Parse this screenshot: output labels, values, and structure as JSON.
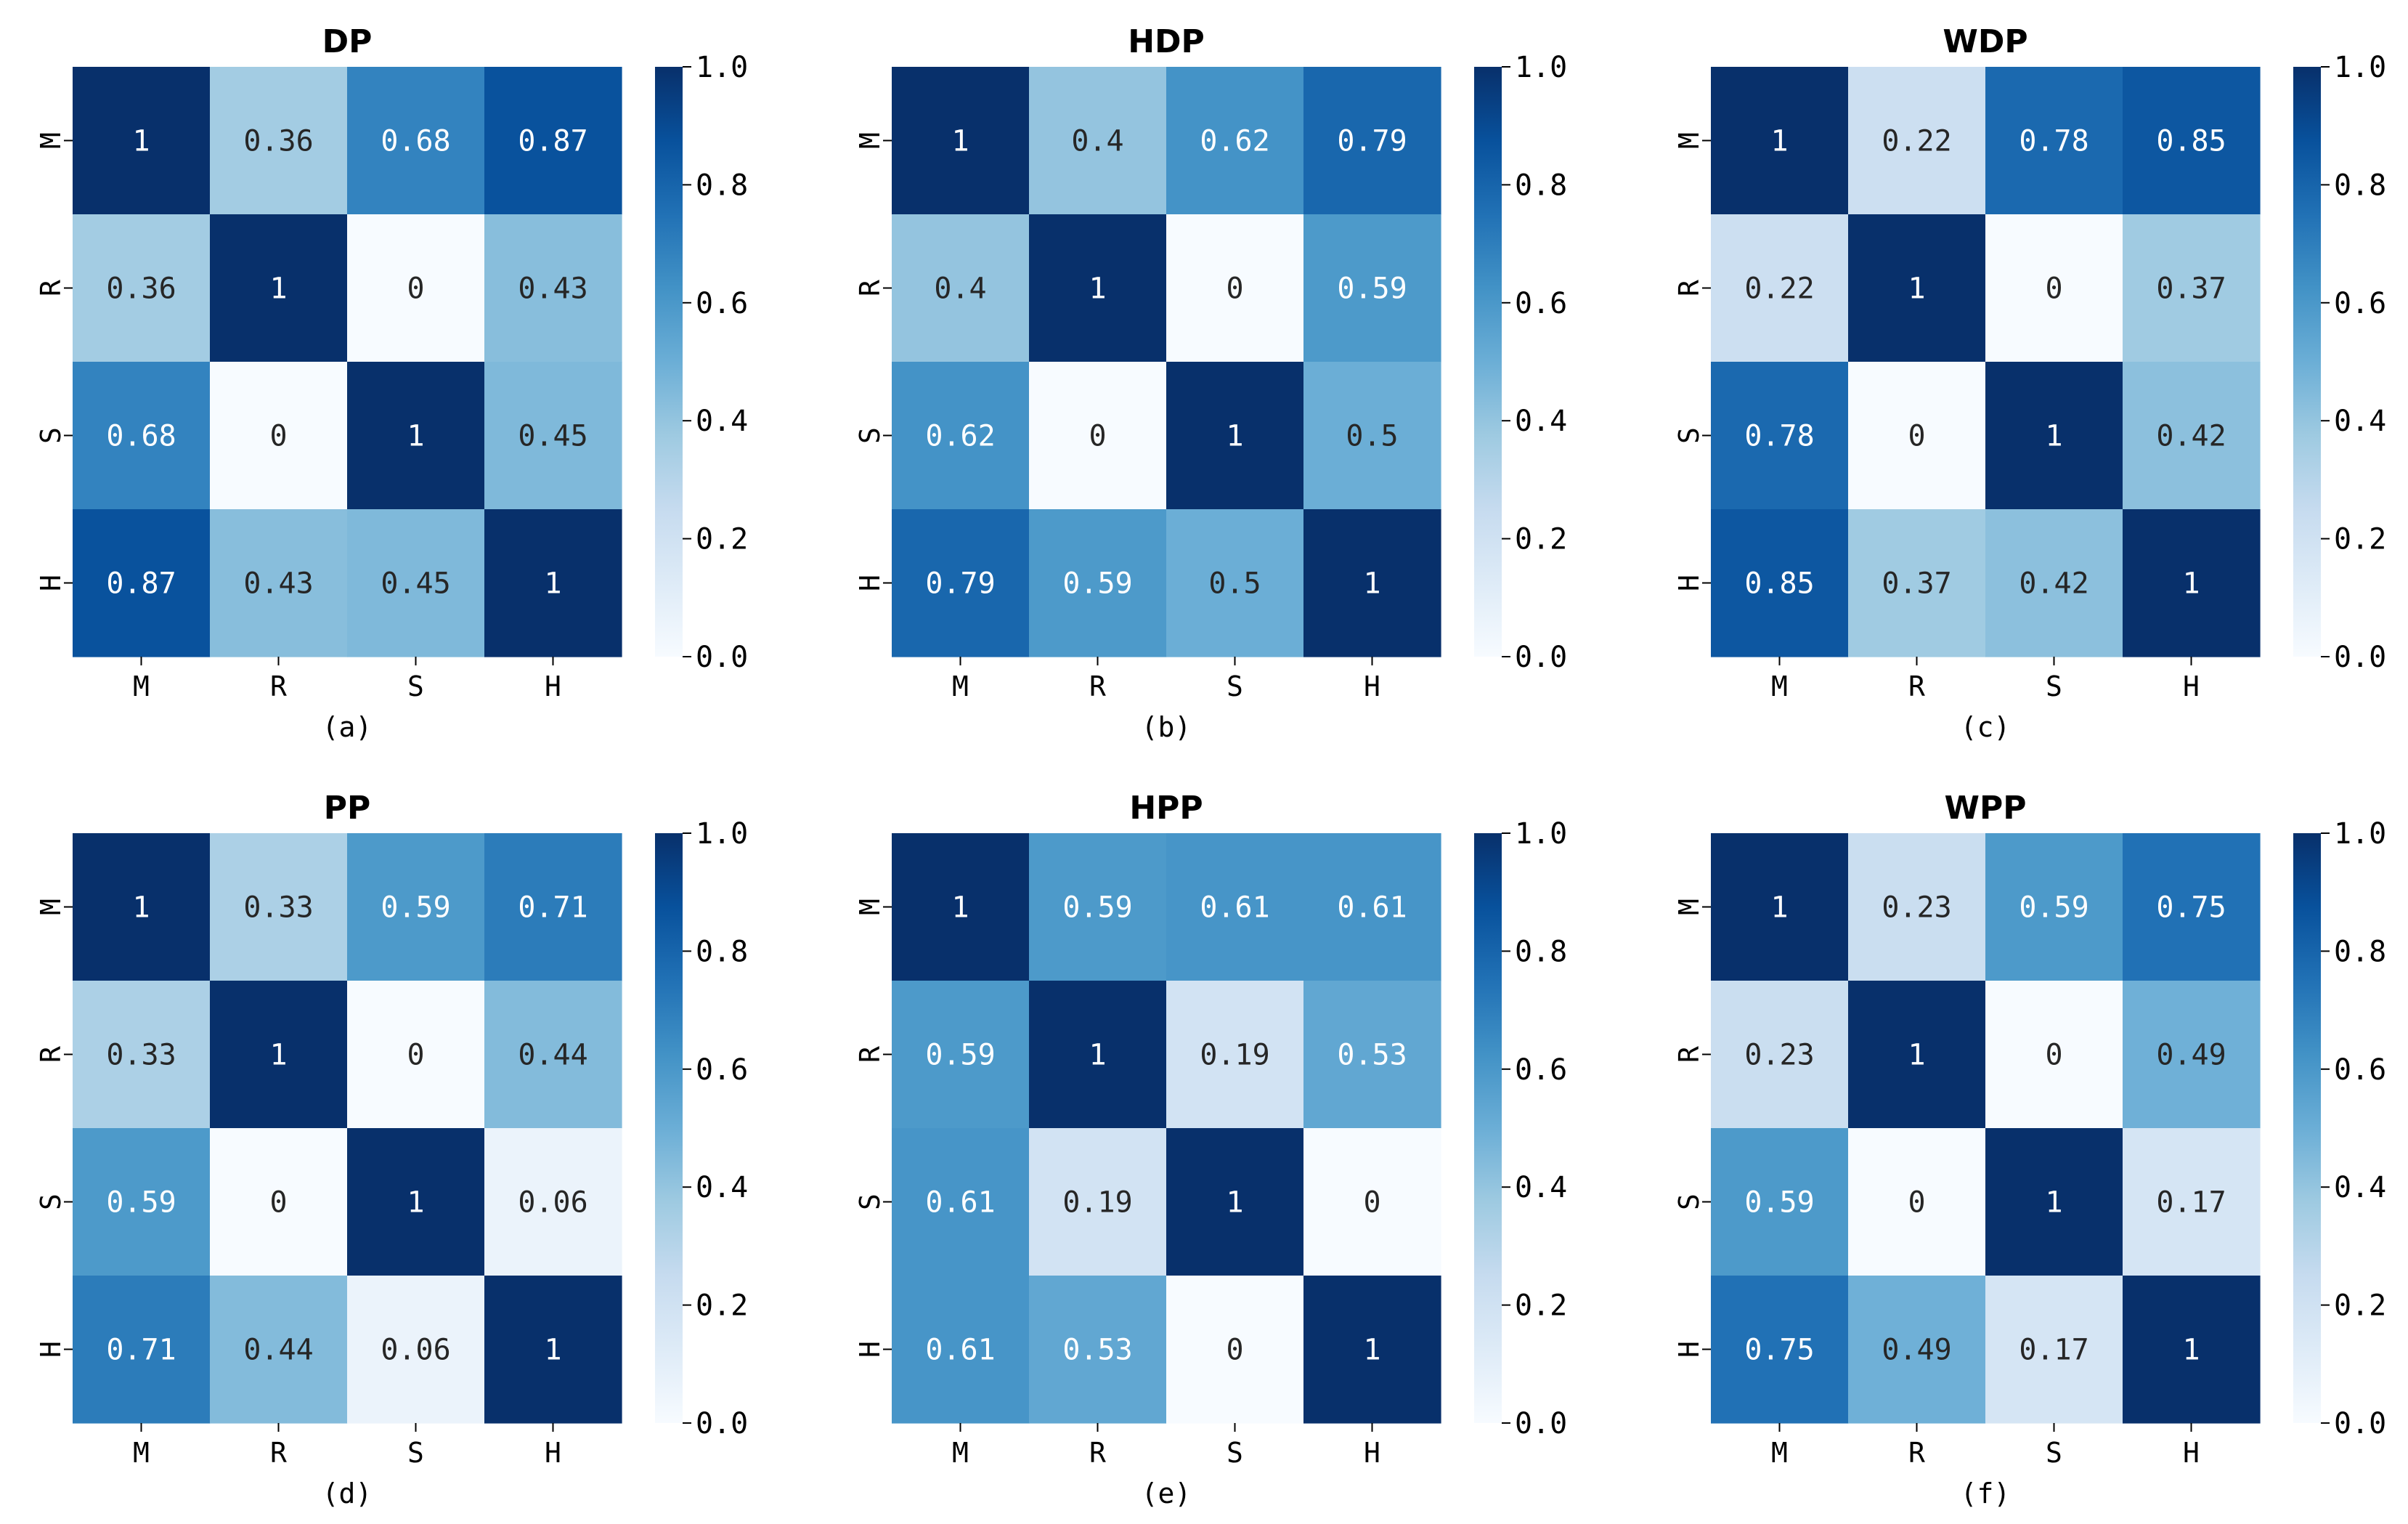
{
  "colors": {
    "scale": [
      "#f7fbff",
      "#deebf7",
      "#c6dbef",
      "#9ecae1",
      "#6baed6",
      "#4292c6",
      "#2171b5",
      "#08519c",
      "#08306b"
    ],
    "text_light": "#ffffff",
    "text_dark": "#262626",
    "axis": "#000000"
  },
  "chart_data": [
    {
      "type": "heatmap",
      "title": "DP",
      "caption": "(a)",
      "x_categories": [
        "M",
        "R",
        "S",
        "H"
      ],
      "y_categories": [
        "M",
        "R",
        "S",
        "H"
      ],
      "values": [
        [
          1,
          0.36,
          0.68,
          0.87
        ],
        [
          0.36,
          1,
          0,
          0.43
        ],
        [
          0.68,
          0,
          1,
          0.45
        ],
        [
          0.87,
          0.43,
          0.45,
          1
        ]
      ],
      "colorbar": {
        "range": [
          0.0,
          1.0
        ],
        "ticks": [
          "0.0",
          "0.2",
          "0.4",
          "0.6",
          "0.8",
          "1.0"
        ]
      }
    },
    {
      "type": "heatmap",
      "title": "HDP",
      "caption": "(b)",
      "x_categories": [
        "M",
        "R",
        "S",
        "H"
      ],
      "y_categories": [
        "M",
        "R",
        "S",
        "H"
      ],
      "values": [
        [
          1,
          0.4,
          0.62,
          0.79
        ],
        [
          0.4,
          1,
          0,
          0.59
        ],
        [
          0.62,
          0,
          1,
          0.5
        ],
        [
          0.79,
          0.59,
          0.5,
          1
        ]
      ],
      "colorbar": {
        "range": [
          0.0,
          1.0
        ],
        "ticks": [
          "0.0",
          "0.2",
          "0.4",
          "0.6",
          "0.8",
          "1.0"
        ]
      }
    },
    {
      "type": "heatmap",
      "title": "WDP",
      "caption": "(c)",
      "x_categories": [
        "M",
        "R",
        "S",
        "H"
      ],
      "y_categories": [
        "M",
        "R",
        "S",
        "H"
      ],
      "values": [
        [
          1,
          0.22,
          0.78,
          0.85
        ],
        [
          0.22,
          1,
          0,
          0.37
        ],
        [
          0.78,
          0,
          1,
          0.42
        ],
        [
          0.85,
          0.37,
          0.42,
          1
        ]
      ],
      "colorbar": {
        "range": [
          0.0,
          1.0
        ],
        "ticks": [
          "0.0",
          "0.2",
          "0.4",
          "0.6",
          "0.8",
          "1.0"
        ]
      }
    },
    {
      "type": "heatmap",
      "title": "PP",
      "caption": "(d)",
      "x_categories": [
        "M",
        "R",
        "S",
        "H"
      ],
      "y_categories": [
        "M",
        "R",
        "S",
        "H"
      ],
      "values": [
        [
          1,
          0.33,
          0.59,
          0.71
        ],
        [
          0.33,
          1,
          0,
          0.44
        ],
        [
          0.59,
          0,
          1,
          0.06
        ],
        [
          0.71,
          0.44,
          0.06,
          1
        ]
      ],
      "colorbar": {
        "range": [
          0.0,
          1.0
        ],
        "ticks": [
          "0.0",
          "0.2",
          "0.4",
          "0.6",
          "0.8",
          "1.0"
        ]
      }
    },
    {
      "type": "heatmap",
      "title": "HPP",
      "caption": "(e)",
      "x_categories": [
        "M",
        "R",
        "S",
        "H"
      ],
      "y_categories": [
        "M",
        "R",
        "S",
        "H"
      ],
      "values": [
        [
          1,
          0.59,
          0.61,
          0.61
        ],
        [
          0.59,
          1,
          0.19,
          0.53
        ],
        [
          0.61,
          0.19,
          1,
          0
        ],
        [
          0.61,
          0.53,
          0,
          1
        ]
      ],
      "colorbar": {
        "range": [
          0.0,
          1.0
        ],
        "ticks": [
          "0.0",
          "0.2",
          "0.4",
          "0.6",
          "0.8",
          "1.0"
        ]
      }
    },
    {
      "type": "heatmap",
      "title": "WPP",
      "caption": "(f)",
      "x_categories": [
        "M",
        "R",
        "S",
        "H"
      ],
      "y_categories": [
        "M",
        "R",
        "S",
        "H"
      ],
      "values": [
        [
          1,
          0.23,
          0.59,
          0.75
        ],
        [
          0.23,
          1,
          0,
          0.49
        ],
        [
          0.59,
          0,
          1,
          0.17
        ],
        [
          0.75,
          0.49,
          0.17,
          1
        ]
      ],
      "colorbar": {
        "range": [
          0.0,
          1.0
        ],
        "ticks": [
          "0.0",
          "0.2",
          "0.4",
          "0.6",
          "0.8",
          "1.0"
        ]
      }
    }
  ]
}
